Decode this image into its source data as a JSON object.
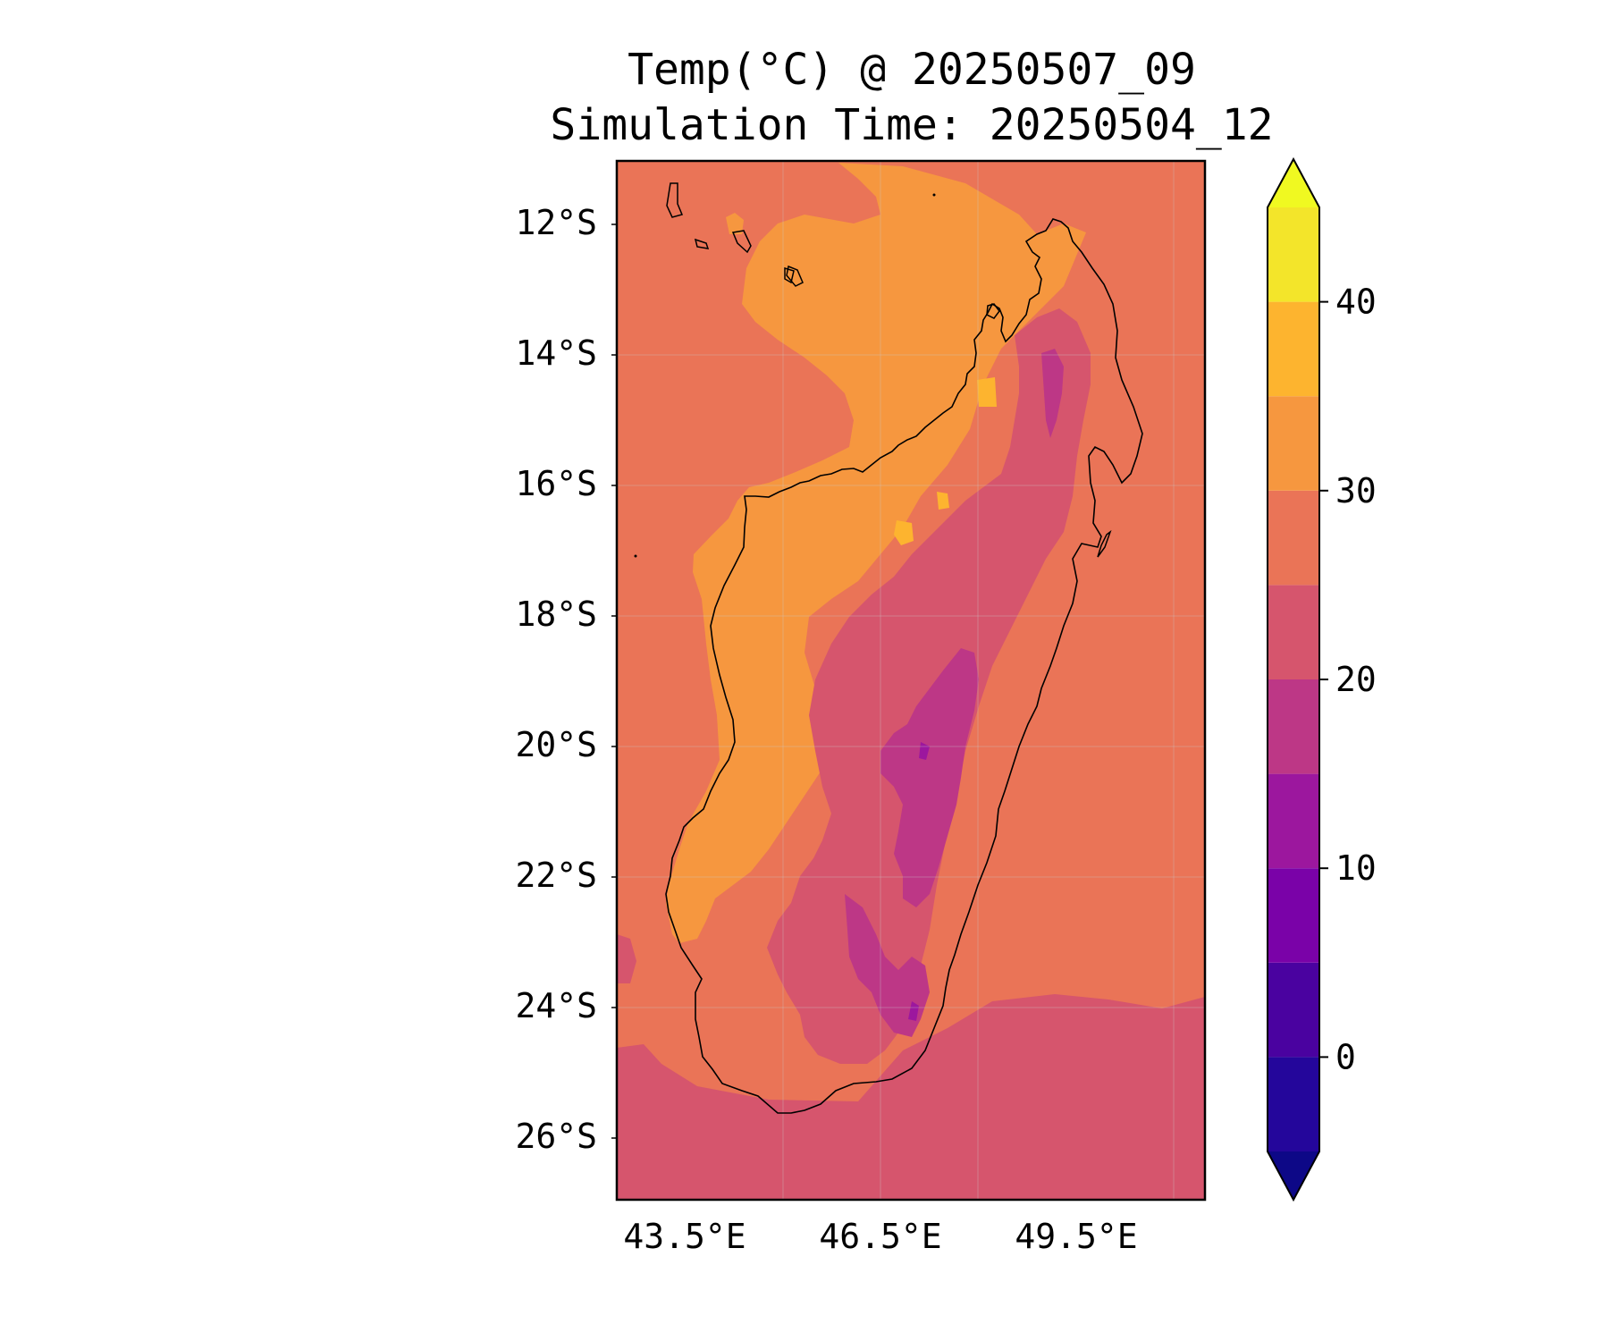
{
  "title": {
    "line1": "Temp(°C) @ 20250507_09",
    "line2": "Simulation Time: 20250504_12"
  },
  "map": {
    "region": "Madagascar",
    "lat_range": [
      -27.0,
      -11.1
    ],
    "lon_range": [
      42.4,
      51.4
    ],
    "lat_ticks": [
      "12°S",
      "14°S",
      "16°S",
      "18°S",
      "20°S",
      "22°S",
      "24°S",
      "26°S"
    ],
    "lon_ticks": [
      "43.5°E",
      "46.5°E",
      "49.5°E"
    ]
  },
  "colorbar": {
    "variable": "Temp(°C)",
    "levels": [
      -5,
      0,
      5,
      10,
      15,
      20,
      25,
      30,
      35,
      40,
      45
    ],
    "tick_labels": [
      "0",
      "10",
      "20",
      "30",
      "40"
    ],
    "colors": [
      "#0d0887",
      "#24069b",
      "#4a02a0",
      "#7a02a8",
      "#9c179e",
      "#bd3786",
      "#d6556d",
      "#ea7457",
      "#f6973f",
      "#fdb42f",
      "#f3e52a",
      "#f0f921"
    ],
    "extend": "both"
  },
  "field_colors": {
    "ocean_north": "#ea7457",
    "ocean_south": "#d6556d",
    "coastal_warm": "#f6973f",
    "hot_spots": "#fdb42f",
    "highlands": "#d6556d",
    "high_peaks": "#bd3786",
    "peak_cores": "#9c179e"
  }
}
